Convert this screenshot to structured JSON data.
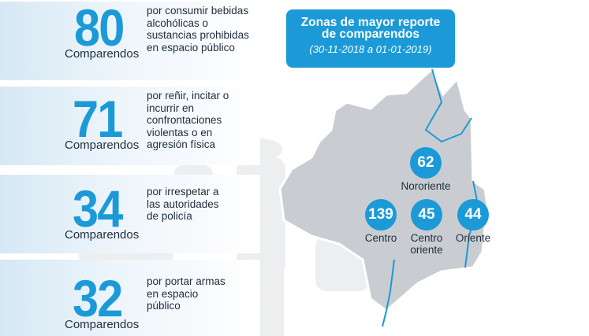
{
  "items": [
    {
      "number": "80",
      "unit": "Comparendos",
      "description": [
        "por consumir bebidas",
        "alcohólicas o",
        "sustancias prohibidas",
        "en espacio público"
      ]
    },
    {
      "number": "71",
      "unit": "Comparendos",
      "description": [
        "por reñir, incitar o",
        "incurrir en",
        "confrontaciones",
        "violentas o en",
        "agresión física"
      ]
    },
    {
      "number": "34",
      "unit": "Comparendos",
      "description": [
        "por irrespetar a",
        "las autoridades",
        "de policía"
      ]
    },
    {
      "number": "32",
      "unit": "Comparendos",
      "description": [
        "por portar armas",
        "en espacio",
        "público"
      ]
    }
  ],
  "map": {
    "title": [
      "Zonas de mayor reporte",
      "de comparendos"
    ],
    "subtitle": "(30-11-2018 a 01-01-2019)",
    "zones": [
      {
        "number": "62",
        "name": "Nororiente"
      },
      {
        "number": "139",
        "name": "Centro"
      },
      {
        "number": "45",
        "name": "Centro oriente"
      },
      {
        "number": "44",
        "name": "Oriente"
      }
    ]
  }
}
